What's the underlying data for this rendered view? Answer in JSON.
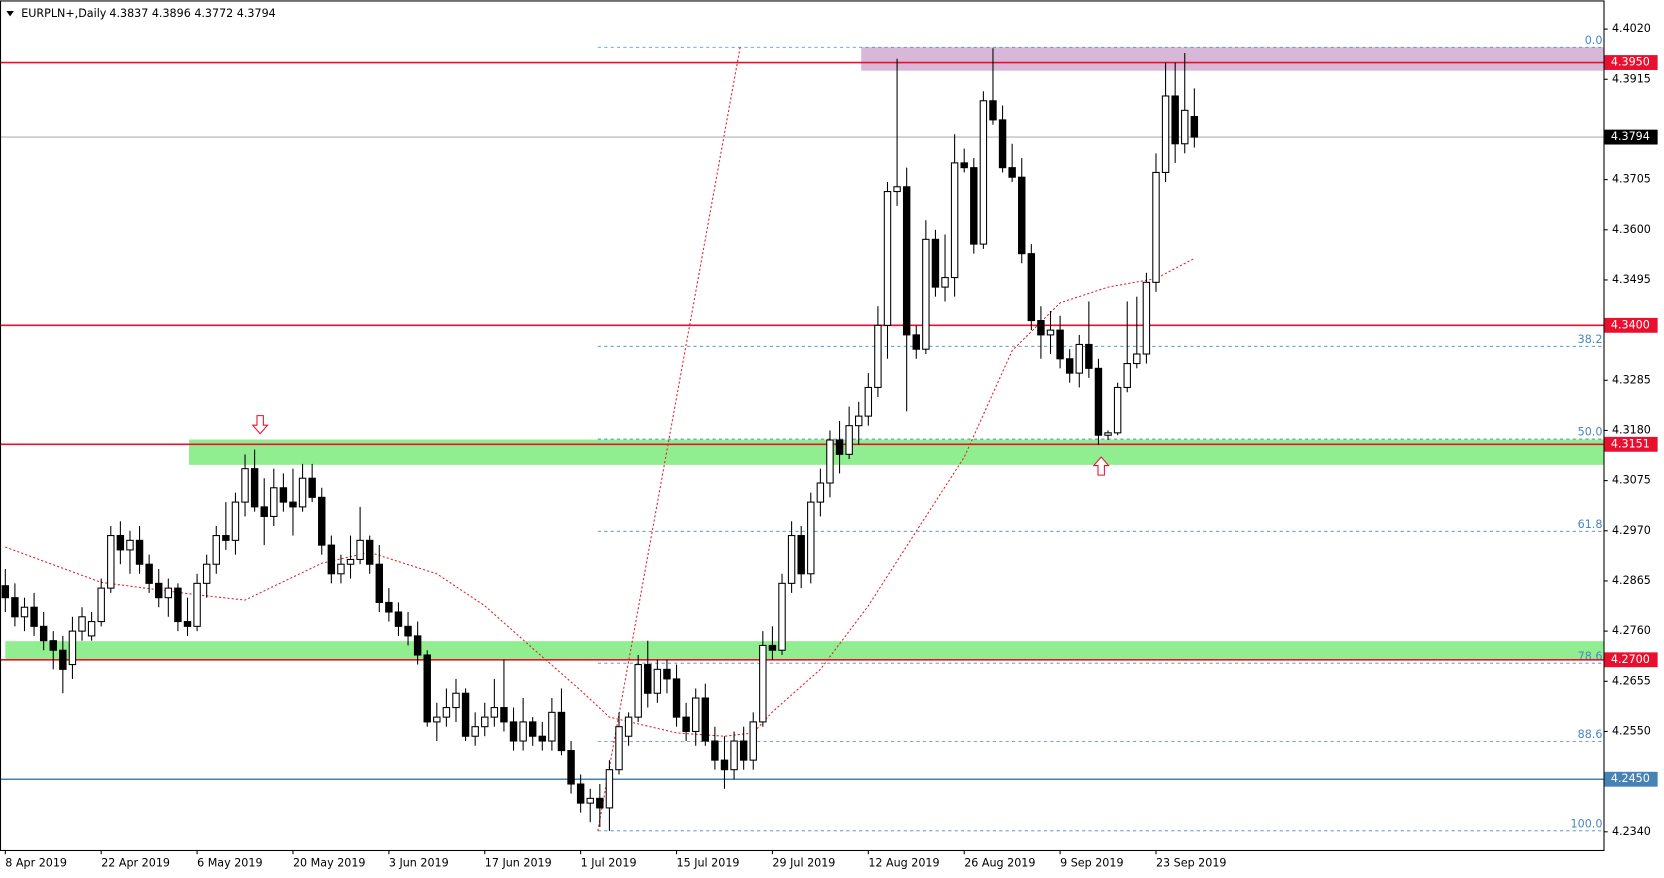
{
  "chart_data": {
    "type": "candlestick",
    "title": "EURPLN+,Daily",
    "categories": [
      "8 Apr 2019",
      null,
      null,
      null,
      null,
      null,
      null,
      null,
      null,
      null,
      "22 Apr 2019",
      null,
      null,
      null,
      null,
      null,
      null,
      null,
      null,
      null,
      "6 May 2019",
      null,
      null,
      null,
      null,
      null,
      null,
      null,
      null,
      null,
      "20 May 2019",
      null,
      null,
      null,
      null,
      null,
      null,
      null,
      null,
      null,
      "3 Jun 2019",
      null,
      null,
      null,
      null,
      null,
      null,
      null,
      null,
      null,
      "17 Jun 2019",
      null,
      null,
      null,
      null,
      null,
      null,
      null,
      null,
      null,
      "1 Jul 2019",
      null,
      null,
      null,
      null,
      null,
      null,
      null,
      null,
      null,
      "15 Jul 2019",
      null,
      null,
      null,
      null,
      null,
      null,
      null,
      null,
      null,
      "29 Jul 2019",
      null,
      null,
      null,
      null,
      null,
      null,
      null,
      null,
      null,
      "12 Aug 2019",
      null,
      null,
      null,
      null,
      null,
      null,
      null,
      null,
      null,
      "26 Aug 2019",
      null,
      null,
      null,
      null,
      null,
      null,
      null,
      null,
      null,
      "9 Sep 2019",
      null,
      null,
      null,
      null,
      null,
      null,
      null,
      null,
      null,
      "23 Sep 2019",
      null,
      null,
      null,
      null
    ],
    "open": [
      4.2855,
      4.283,
      4.279,
      4.281,
      4.277,
      4.274,
      4.272,
      4.269,
      4.276,
      4.275,
      4.278,
      4.285,
      4.296,
      4.293,
      4.295,
      4.29,
      4.286,
      4.283,
      4.285,
      4.278,
      4.277,
      4.286,
      4.29,
      4.296,
      4.295,
      4.303,
      4.31,
      4.302,
      4.3,
      4.306,
      4.303,
      4.302,
      4.308,
      4.304,
      4.294,
      4.288,
      4.29,
      4.291,
      4.295,
      4.29,
      4.282,
      4.28,
      4.277,
      4.275,
      4.271,
      4.257,
      4.258,
      4.26,
      4.263,
      4.254,
      4.256,
      4.258,
      4.26,
      4.257,
      4.253,
      4.257,
      4.254,
      4.253,
      4.259,
      4.251,
      4.244,
      4.24,
      4.241,
      4.239,
      4.247,
      4.254,
      4.258,
      4.269,
      4.263,
      4.268,
      4.266,
      4.258,
      4.255,
      4.262,
      4.253,
      4.249,
      4.247,
      4.253,
      4.249,
      4.257,
      4.273,
      4.272,
      4.286,
      4.296,
      4.288,
      4.303,
      4.307,
      4.316,
      4.313,
      4.319,
      4.321,
      4.327,
      4.34,
      4.368,
      4.369,
      4.338,
      4.335,
      4.358,
      4.348,
      4.35,
      4.374,
      4.373,
      4.357,
      4.387,
      4.383,
      4.373,
      4.371,
      4.355,
      4.341,
      4.338,
      4.339,
      4.333,
      4.33,
      4.336,
      4.331,
      4.317,
      4.3175,
      4.327,
      4.332,
      4.334,
      4.349,
      4.372,
      4.388,
      4.378,
      4.3837
    ],
    "high": [
      4.289,
      4.286,
      4.283,
      4.284,
      4.28,
      4.276,
      4.275,
      4.279,
      4.281,
      4.28,
      4.287,
      4.298,
      4.299,
      4.297,
      4.298,
      4.292,
      4.289,
      4.287,
      4.286,
      4.283,
      4.288,
      4.292,
      4.298,
      4.303,
      4.305,
      4.313,
      4.314,
      4.308,
      4.31,
      4.309,
      4.31,
      4.311,
      4.311,
      4.306,
      4.296,
      4.292,
      4.296,
      4.302,
      4.296,
      4.294,
      4.285,
      4.282,
      4.28,
      4.278,
      4.272,
      4.261,
      4.264,
      4.266,
      4.264,
      4.259,
      4.261,
      4.266,
      4.27,
      4.26,
      4.262,
      4.258,
      4.257,
      4.262,
      4.264,
      4.253,
      4.246,
      4.243,
      4.244,
      4.249,
      4.259,
      4.259,
      4.271,
      4.274,
      4.27,
      4.27,
      4.269,
      4.261,
      4.264,
      4.265,
      4.256,
      4.254,
      4.255,
      4.256,
      4.259,
      4.276,
      4.277,
      4.288,
      4.299,
      4.298,
      4.305,
      4.31,
      4.318,
      4.32,
      4.323,
      4.324,
      4.33,
      4.344,
      4.37,
      4.3958,
      4.373,
      4.34,
      4.362,
      4.36,
      4.359,
      4.38,
      4.377,
      4.375,
      4.389,
      4.398,
      4.386,
      4.378,
      4.375,
      4.357,
      4.344,
      4.343,
      4.342,
      4.335,
      4.338,
      4.345,
      4.333,
      4.318,
      4.328,
      4.345,
      4.346,
      4.351,
      4.376,
      4.395,
      4.395,
      4.397,
      4.3896
    ],
    "low": [
      4.28,
      4.277,
      4.276,
      4.275,
      4.272,
      4.268,
      4.263,
      4.266,
      4.274,
      4.274,
      4.277,
      4.284,
      4.29,
      4.288,
      4.288,
      4.284,
      4.281,
      4.279,
      4.276,
      4.275,
      4.276,
      4.283,
      4.288,
      4.293,
      4.292,
      4.3,
      4.301,
      4.294,
      4.298,
      4.301,
      4.296,
      4.301,
      4.303,
      4.292,
      4.286,
      4.286,
      4.287,
      4.29,
      4.288,
      4.28,
      4.278,
      4.275,
      4.273,
      4.269,
      4.256,
      4.253,
      4.256,
      4.257,
      4.253,
      4.252,
      4.254,
      4.256,
      4.255,
      4.251,
      4.251,
      4.252,
      4.251,
      4.251,
      4.25,
      4.242,
      4.238,
      4.236,
      4.235,
      4.2342,
      4.246,
      4.252,
      4.257,
      4.26,
      4.261,
      4.263,
      4.256,
      4.253,
      4.252,
      4.252,
      4.247,
      4.243,
      4.245,
      4.247,
      4.247,
      4.256,
      4.27,
      4.271,
      4.284,
      4.285,
      4.286,
      4.3,
      4.304,
      4.309,
      4.312,
      4.315,
      4.319,
      4.325,
      4.333,
      4.365,
      4.322,
      4.333,
      4.334,
      4.346,
      4.345,
      4.346,
      4.372,
      4.355,
      4.356,
      4.382,
      4.372,
      4.37,
      4.353,
      4.339,
      4.333,
      4.334,
      4.331,
      4.328,
      4.327,
      4.329,
      4.315,
      4.316,
      4.317,
      4.326,
      4.331,
      4.332,
      4.347,
      4.37,
      4.374,
      4.376,
      4.3772
    ],
    "close": [
      4.283,
      4.279,
      4.281,
      4.277,
      4.274,
      4.272,
      4.268,
      4.276,
      4.279,
      4.278,
      4.285,
      4.296,
      4.293,
      4.295,
      4.29,
      4.286,
      4.283,
      4.285,
      4.278,
      4.277,
      4.286,
      4.29,
      4.296,
      4.295,
      4.303,
      4.31,
      4.302,
      4.3,
      4.306,
      4.303,
      4.302,
      4.308,
      4.304,
      4.294,
      4.288,
      4.29,
      4.291,
      4.295,
      4.29,
      4.282,
      4.28,
      4.277,
      4.275,
      4.271,
      4.257,
      4.258,
      4.26,
      4.263,
      4.254,
      4.256,
      4.258,
      4.26,
      4.257,
      4.253,
      4.257,
      4.254,
      4.253,
      4.259,
      4.251,
      4.244,
      4.24,
      4.241,
      4.239,
      4.247,
      4.256,
      4.258,
      4.269,
      4.263,
      4.268,
      4.266,
      4.258,
      4.255,
      4.262,
      4.253,
      4.249,
      4.247,
      4.253,
      4.249,
      4.257,
      4.273,
      4.272,
      4.286,
      4.296,
      4.288,
      4.303,
      4.307,
      4.316,
      4.313,
      4.319,
      4.321,
      4.327,
      4.34,
      4.368,
      4.369,
      4.338,
      4.335,
      4.358,
      4.348,
      4.35,
      4.374,
      4.373,
      4.357,
      4.387,
      4.383,
      4.373,
      4.371,
      4.355,
      4.341,
      4.338,
      4.339,
      4.333,
      4.33,
      4.336,
      4.331,
      4.317,
      4.3175,
      4.327,
      4.332,
      4.334,
      4.349,
      4.372,
      4.388,
      4.378,
      4.385,
      4.3794
    ],
    "up_color": "#ffffff",
    "down_color": "#000000",
    "ylim": [
      4.2302,
      4.408
    ],
    "yticks": [
      {
        "value": 4.402,
        "label": "4.4020"
      },
      {
        "value": 4.3915,
        "label": "4.3915"
      },
      {
        "value": 4.3705,
        "label": "4.3705"
      },
      {
        "value": 4.36,
        "label": "4.3600"
      },
      {
        "value": 4.3495,
        "label": "4.3495"
      },
      {
        "value": 4.3285,
        "label": "4.3285"
      },
      {
        "value": 4.318,
        "label": "4.3180"
      },
      {
        "value": 4.3075,
        "label": "4.3075"
      },
      {
        "value": 4.297,
        "label": "4.2970"
      },
      {
        "value": 4.2865,
        "label": "4.2865"
      },
      {
        "value": 4.276,
        "label": "4.2760"
      },
      {
        "value": 4.2655,
        "label": "4.2655"
      },
      {
        "value": 4.255,
        "label": "4.2550"
      },
      {
        "value": 4.234,
        "label": "4.2340"
      }
    ],
    "moving_average": {
      "color": "#e0202a",
      "x": [
        0,
        10,
        20,
        25,
        33,
        38,
        45,
        50,
        55,
        60,
        63,
        70,
        75,
        78,
        80,
        85,
        90,
        95,
        100,
        105,
        110,
        115,
        120,
        124
      ],
      "values": [
        4.2936,
        4.2862,
        4.2836,
        4.2825,
        4.2902,
        4.2925,
        4.288,
        4.2813,
        4.2724,
        4.2636,
        4.258,
        4.2547,
        4.254,
        4.2547,
        4.2591,
        4.268,
        4.2813,
        4.2969,
        4.3124,
        4.3347,
        4.3447,
        4.348,
        4.3498,
        4.354
      ]
    },
    "zones": [
      {
        "from": 4.3933,
        "to": 4.3982,
        "color": "#d8b8d8"
      },
      {
        "from": 4.3108,
        "to": 4.3161,
        "color": "#90ee90"
      },
      {
        "from": 4.2699,
        "to": 4.2739,
        "color": "#90ee90"
      }
    ],
    "levels": [
      {
        "value": 4.395,
        "label": "4.3950",
        "color": "#e8102e"
      },
      {
        "value": 4.34,
        "label": "4.3400",
        "color": "#e8102e"
      },
      {
        "value": 4.3151,
        "label": "4.3151",
        "color": "#e8102e"
      },
      {
        "value": 4.27,
        "label": "4.2700",
        "color": "#e8102e"
      },
      {
        "value": 4.245,
        "label": "4.2450",
        "color": "#4682b4"
      }
    ],
    "fibonacci": {
      "color": "#4a86c0",
      "trend_color": "#e0202a",
      "levels": [
        {
          "label": "0.0",
          "price": 4.3982
        },
        {
          "label": "38.2",
          "price": 4.3356
        },
        {
          "label": "50.0",
          "price": 4.3162
        },
        {
          "label": "61.8",
          "price": 4.2969
        },
        {
          "label": "78.6",
          "price": 4.2693
        },
        {
          "label": "88.6",
          "price": 4.2529
        },
        {
          "label": "100.0",
          "price": 4.2342
        }
      ]
    }
  }
}
